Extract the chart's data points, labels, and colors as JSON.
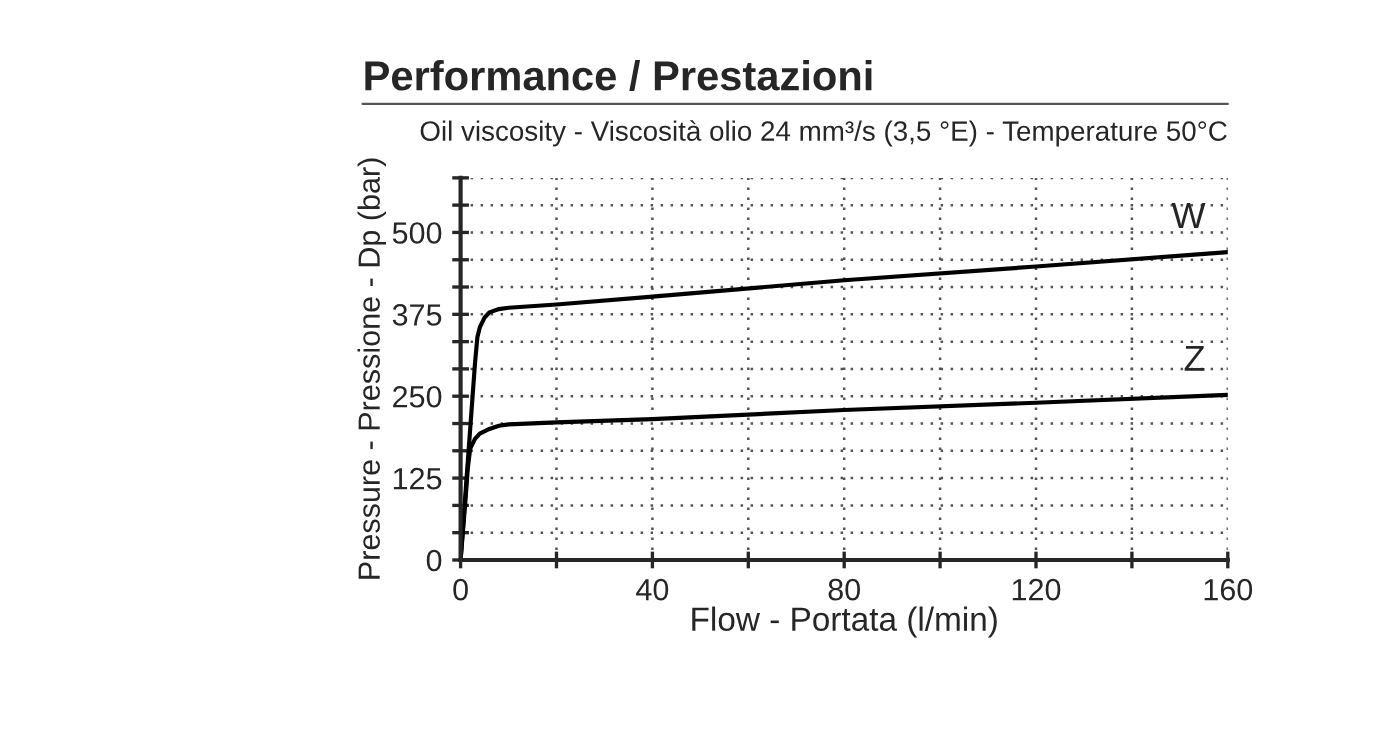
{
  "chart_data": {
    "type": "line",
    "title": "Performance / Prestazioni",
    "subtitle": "Oil viscosity - Viscosità olio 24 mm³/s (3,5 °E) - Temperature 50°C",
    "xlabel": "Flow - Portata (l/min)",
    "ylabel": "Pressure - Pressione - Dp (bar)",
    "series": [
      {
        "name": "W",
        "color": "#000000",
        "x": [
          0,
          1,
          2,
          3,
          3.5,
          4,
          5,
          6,
          8,
          10,
          20,
          40,
          80,
          120,
          160
        ],
        "values": [
          0,
          100,
          200,
          300,
          340,
          355,
          370,
          378,
          383,
          385,
          390,
          402,
          427,
          448,
          470
        ]
      },
      {
        "name": "Z",
        "color": "#000000",
        "x": [
          0,
          1,
          1.5,
          2,
          3,
          4,
          6,
          8,
          10,
          20,
          40,
          80,
          120,
          160
        ],
        "values": [
          0,
          90,
          140,
          170,
          185,
          193,
          200,
          205,
          207,
          210,
          215,
          229,
          240,
          252
        ]
      }
    ],
    "xlim": [
      0,
      160
    ],
    "ylim": [
      0,
      583.3
    ],
    "xticks": [
      0,
      {
        "value": 20,
        "label": null
      },
      40,
      {
        "value": 60,
        "label": null
      },
      80,
      {
        "value": 100,
        "label": null
      },
      120,
      {
        "value": 140,
        "label": null
      },
      160
    ],
    "yticks": [
      0,
      {
        "value": 41.7,
        "label": null
      },
      {
        "value": 83.3,
        "label": null
      },
      125,
      {
        "value": 166.7,
        "label": null
      },
      {
        "value": 208.3,
        "label": null
      },
      250,
      {
        "value": 291.7,
        "label": null
      },
      {
        "value": 333.3,
        "label": null
      },
      375,
      {
        "value": 416.7,
        "label": null
      },
      {
        "value": 458.3,
        "label": null
      },
      500,
      {
        "value": 541.7,
        "label": null
      },
      {
        "value": 583.3,
        "label": null
      }
    ],
    "grid": true,
    "marker": "none",
    "line_style": "solid",
    "legend": false
  }
}
